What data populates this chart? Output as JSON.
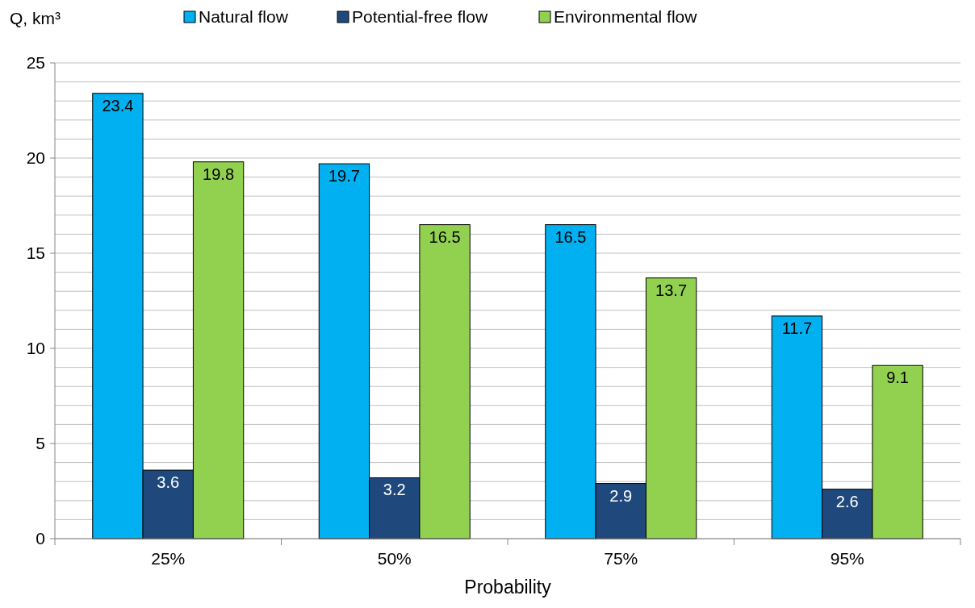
{
  "chart_data": {
    "type": "bar",
    "ylabel": "Q, km³",
    "xlabel": "Probability",
    "categories": [
      "25%",
      "50%",
      "75%",
      "95%"
    ],
    "series": [
      {
        "name": "Natural flow",
        "color": "#00b0f0",
        "values": [
          23.4,
          19.7,
          16.5,
          11.7
        ]
      },
      {
        "name": "Potential-free flow",
        "color": "#1f497d",
        "values": [
          3.6,
          3.2,
          2.9,
          2.6
        ]
      },
      {
        "name": "Environmental flow",
        "color": "#92d050",
        "values": [
          19.8,
          16.5,
          13.7,
          9.1
        ]
      }
    ],
    "ylim": [
      0,
      25
    ],
    "yticks": [
      0,
      {
        "value": 1,
        "label": null
      },
      {
        "value": 2,
        "label": null
      },
      {
        "value": 3,
        "label": null
      },
      {
        "value": 4,
        "label": null
      },
      5,
      {
        "value": 6,
        "label": null
      },
      {
        "value": 7,
        "label": null
      },
      {
        "value": 8,
        "label": null
      },
      {
        "value": 9,
        "label": null
      },
      10,
      {
        "value": 11,
        "label": null
      },
      {
        "value": 12,
        "label": null
      },
      {
        "value": 13,
        "label": null
      },
      {
        "value": 14,
        "label": null
      },
      15,
      {
        "value": 16,
        "label": null
      },
      {
        "value": 17,
        "label": null
      },
      {
        "value": 18,
        "label": null
      },
      {
        "value": 19,
        "label": null
      },
      20,
      {
        "value": 21,
        "label": null
      },
      {
        "value": 22,
        "label": null
      },
      {
        "value": 23,
        "label": null
      },
      {
        "value": 24,
        "label": null
      },
      25
    ],
    "grid": "y",
    "legend": "top",
    "data_labels": true
  }
}
